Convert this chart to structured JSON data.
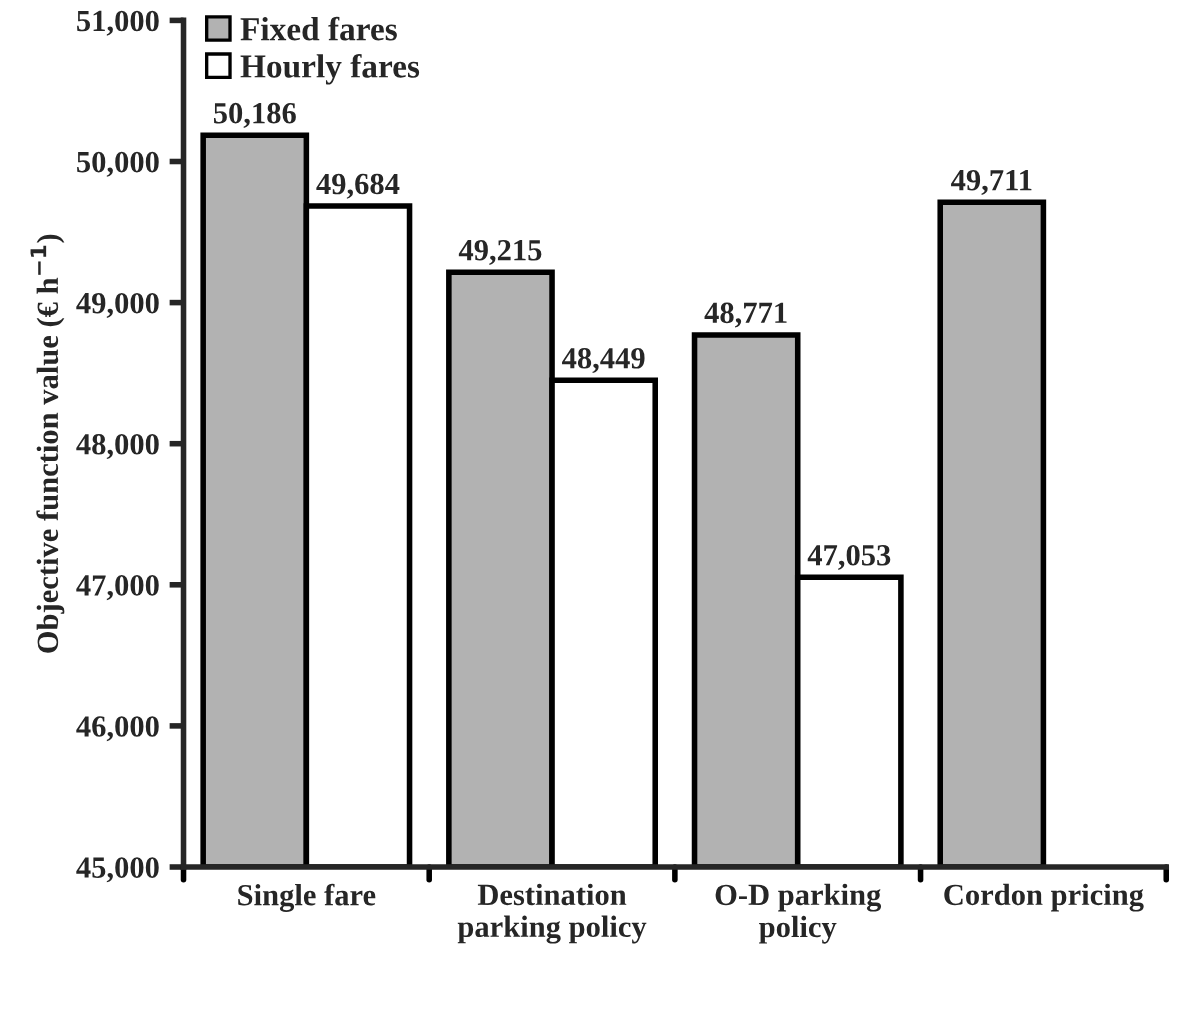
{
  "chart_data": {
    "type": "bar",
    "ylabel": "Objective function value (€ h$^{−1}$)",
    "categories": [
      "Single fare",
      "Destination\nparking policy",
      "O-D parking\npolicy",
      "Cordon pricing"
    ],
    "series": [
      {
        "name": "Fixed fares",
        "color": "#b2b2b2",
        "values": [
          50186,
          49215,
          48771,
          49711
        ],
        "value_labels": [
          "50,186",
          "49,215",
          "48,771",
          "49,711"
        ]
      },
      {
        "name": "Hourly fares",
        "color": "#ffffff",
        "values": [
          49684,
          48449,
          47053,
          null
        ],
        "value_labels": [
          "49,684",
          "48,449",
          "47,053",
          null
        ]
      }
    ],
    "ylim": [
      45000,
      51000
    ],
    "yticks": [
      {
        "value": 45000,
        "label": "45,000"
      },
      {
        "value": 46000,
        "label": "46,000"
      },
      {
        "value": 47000,
        "label": "47,000"
      },
      {
        "value": 48000,
        "label": "48,000"
      },
      {
        "value": 49000,
        "label": "49,000"
      },
      {
        "value": 50000,
        "label": "50,000"
      },
      {
        "value": 51000,
        "label": "51,000"
      }
    ],
    "legend": "top left",
    "grid": false
  }
}
